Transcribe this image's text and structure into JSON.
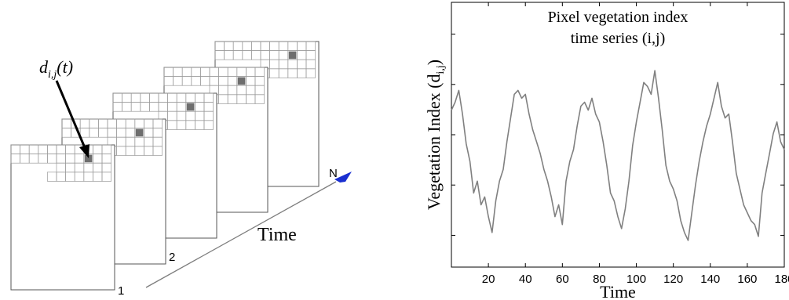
{
  "diagram": {
    "pixel_label": "d",
    "pixel_label_sub": "i,j",
    "pixel_label_arg": "(t)",
    "axis_label": "Time",
    "frame_labels": [
      "1",
      "2",
      "N"
    ],
    "accent_color": "#1a2fd0"
  },
  "chart_data": {
    "type": "line",
    "title_line1": "Pixel vegetation index",
    "title_line2": "time series (i,j)",
    "xlabel": "Time",
    "ylabel": "Vegetation Index (d",
    "ylabel_sub": "i,j",
    "ylabel_close": ")",
    "xlim": [
      0,
      180
    ],
    "ylim": [
      0,
      1
    ],
    "x_ticks": [
      "20",
      "40",
      "60",
      "80",
      "100",
      "120",
      "140",
      "160",
      "180"
    ],
    "line_color": "#808080",
    "x": [
      0,
      2,
      4,
      6,
      8,
      10,
      12,
      14,
      16,
      18,
      20,
      22,
      24,
      26,
      28,
      30,
      32,
      34,
      36,
      38,
      40,
      42,
      44,
      46,
      48,
      50,
      52,
      54,
      56,
      58,
      60,
      62,
      64,
      66,
      68,
      70,
      72,
      74,
      76,
      78,
      80,
      82,
      84,
      86,
      88,
      90,
      92,
      94,
      96,
      98,
      100,
      102,
      104,
      106,
      108,
      110,
      112,
      114,
      116,
      118,
      120,
      122,
      124,
      126,
      128,
      130,
      132,
      134,
      136,
      138,
      140,
      142,
      144,
      146,
      148,
      150,
      152,
      154,
      156,
      158,
      160,
      162,
      164,
      166,
      168,
      170,
      172,
      174,
      176,
      178,
      180
    ],
    "values": [
      0.72,
      0.76,
      0.82,
      0.7,
      0.55,
      0.46,
      0.3,
      0.36,
      0.24,
      0.28,
      0.18,
      0.1,
      0.26,
      0.36,
      0.42,
      0.56,
      0.68,
      0.8,
      0.82,
      0.78,
      0.8,
      0.7,
      0.62,
      0.56,
      0.5,
      0.42,
      0.36,
      0.28,
      0.18,
      0.24,
      0.14,
      0.36,
      0.46,
      0.52,
      0.64,
      0.74,
      0.76,
      0.72,
      0.78,
      0.7,
      0.66,
      0.56,
      0.44,
      0.3,
      0.26,
      0.18,
      0.12,
      0.22,
      0.36,
      0.54,
      0.66,
      0.76,
      0.86,
      0.84,
      0.8,
      0.92,
      0.78,
      0.62,
      0.44,
      0.36,
      0.32,
      0.26,
      0.16,
      0.1,
      0.06,
      0.2,
      0.34,
      0.46,
      0.56,
      0.64,
      0.7,
      0.78,
      0.86,
      0.74,
      0.68,
      0.7,
      0.56,
      0.4,
      0.32,
      0.24,
      0.2,
      0.16,
      0.14,
      0.08,
      0.3,
      0.4,
      0.5,
      0.6,
      0.66,
      0.56,
      0.52
    ]
  }
}
